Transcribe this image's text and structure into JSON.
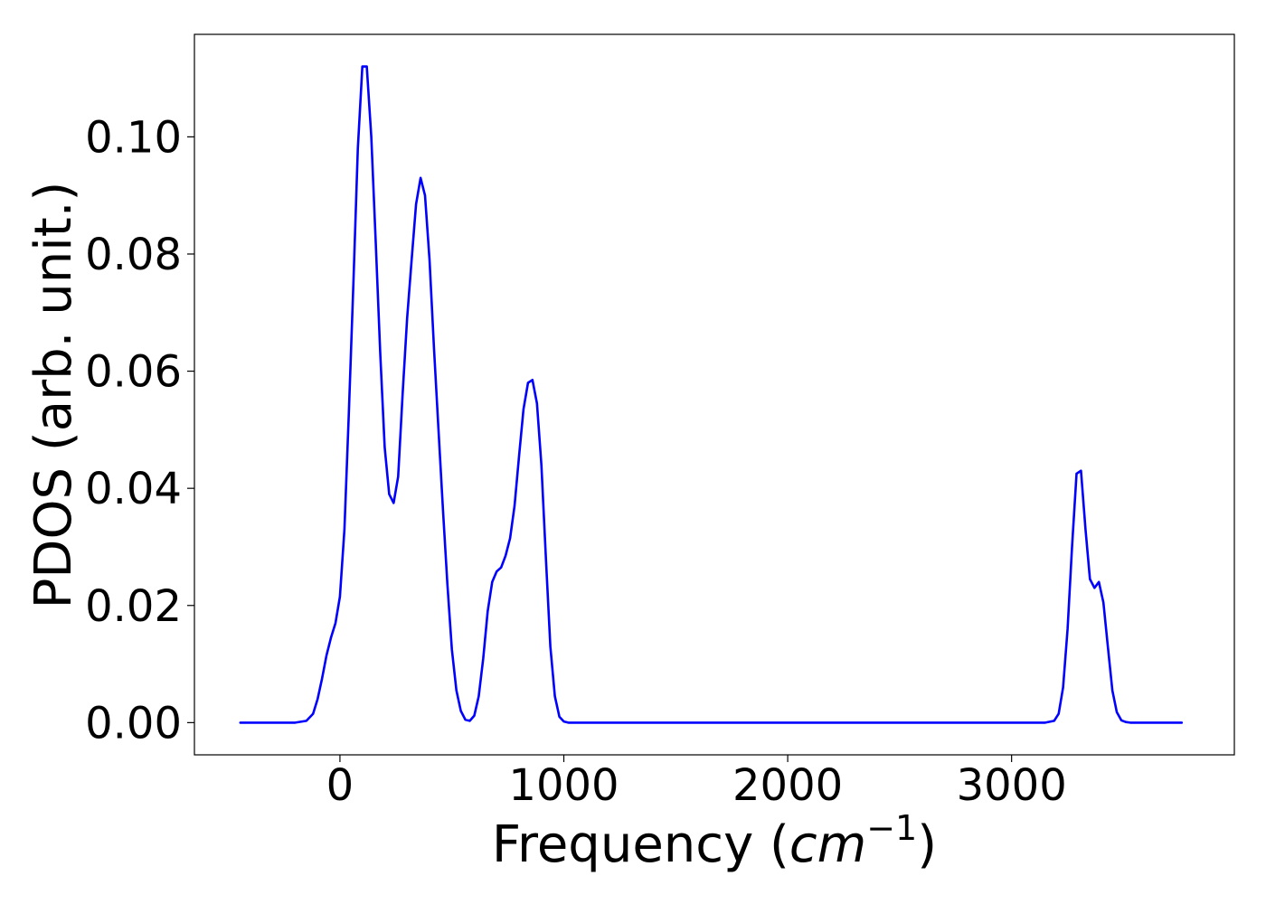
{
  "chart_data": {
    "type": "line",
    "title": "",
    "xlabel_main": "Frequency (",
    "xlabel_unit": "cm",
    "xlabel_exp": "−1",
    "xlabel_close": ")",
    "ylabel": "PDOS (arb. unit.)",
    "xlim": [
      -650,
      3995
    ],
    "ylim": [
      -0.0055,
      0.1175
    ],
    "xticks": [
      0,
      1000,
      2000,
      3000
    ],
    "xtick_labels": [
      "0",
      "1000",
      "2000",
      "3000"
    ],
    "yticks": [
      0.0,
      0.02,
      0.04,
      0.06,
      0.08,
      0.1
    ],
    "ytick_labels": [
      "0.00",
      "0.02",
      "0.04",
      "0.06",
      "0.08",
      "0.10"
    ],
    "grid": false,
    "legend": "none",
    "series": [
      {
        "color": "#0000ff",
        "x": [
          -445,
          -200,
          -150,
          -120,
          -100,
          -80,
          -60,
          -40,
          -20,
          0,
          20,
          40,
          60,
          80,
          100,
          120,
          140,
          160,
          180,
          200,
          220,
          240,
          260,
          280,
          300,
          320,
          340,
          360,
          380,
          400,
          420,
          440,
          460,
          480,
          500,
          520,
          540,
          560,
          580,
          600,
          620,
          640,
          660,
          680,
          700,
          720,
          740,
          760,
          780,
          800,
          820,
          840,
          860,
          880,
          900,
          920,
          940,
          960,
          980,
          1000,
          1020,
          1040,
          1060,
          1100,
          1200,
          2000,
          3000,
          3150,
          3190,
          3210,
          3230,
          3250,
          3270,
          3290,
          3310,
          3330,
          3350,
          3370,
          3390,
          3410,
          3430,
          3450,
          3470,
          3490,
          3510,
          3530,
          3550,
          3600,
          3760
        ],
        "y": [
          0.0,
          0.0,
          0.0003,
          0.0015,
          0.004,
          0.0075,
          0.0115,
          0.0145,
          0.017,
          0.0215,
          0.033,
          0.053,
          0.075,
          0.098,
          0.112,
          0.112,
          0.1,
          0.082,
          0.063,
          0.047,
          0.039,
          0.0375,
          0.042,
          0.056,
          0.069,
          0.079,
          0.0885,
          0.093,
          0.09,
          0.079,
          0.064,
          0.05,
          0.0365,
          0.0235,
          0.0125,
          0.0055,
          0.002,
          0.0005,
          0.0003,
          0.0012,
          0.0045,
          0.011,
          0.019,
          0.024,
          0.0258,
          0.0265,
          0.0285,
          0.0315,
          0.037,
          0.0455,
          0.0535,
          0.058,
          0.0585,
          0.0545,
          0.044,
          0.028,
          0.013,
          0.0045,
          0.001,
          0.0002,
          0.0,
          0.0,
          0.0,
          0.0,
          0.0,
          0.0,
          0.0,
          0.0,
          0.0003,
          0.0015,
          0.006,
          0.016,
          0.03,
          0.0425,
          0.043,
          0.033,
          0.0245,
          0.023,
          0.024,
          0.0205,
          0.013,
          0.0055,
          0.0018,
          0.0004,
          0.0001,
          0.0,
          0.0,
          0.0,
          0.0
        ]
      }
    ]
  }
}
